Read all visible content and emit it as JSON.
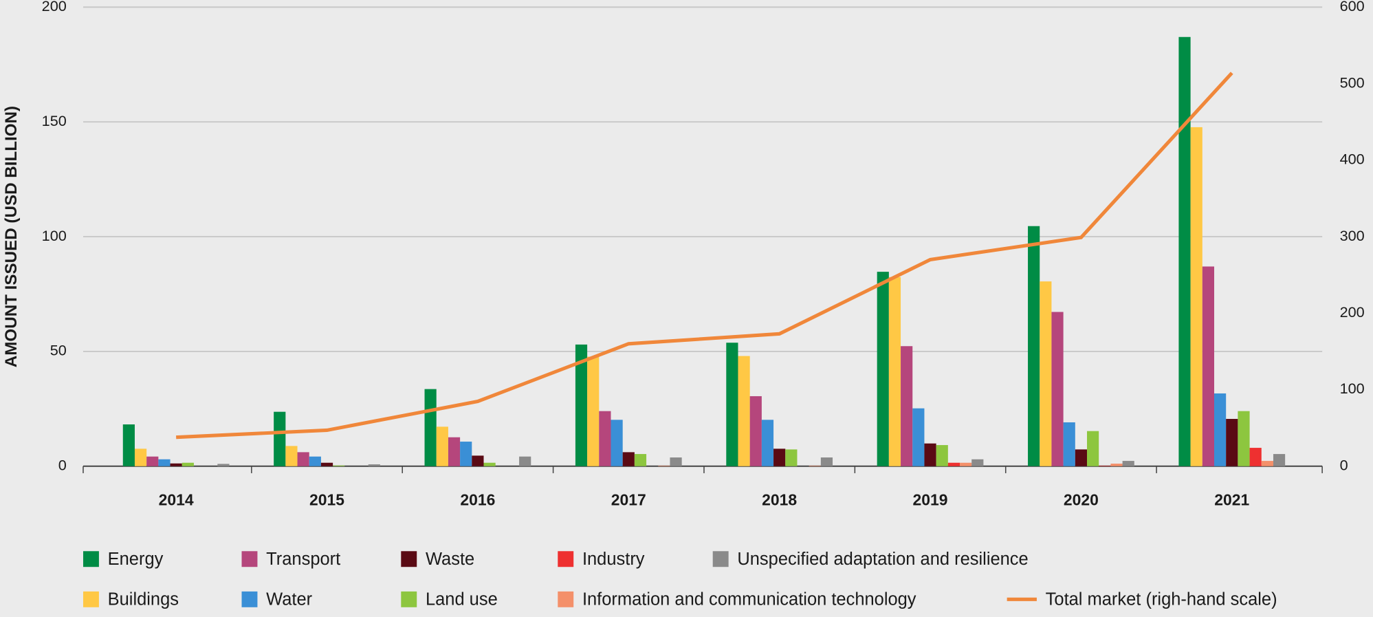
{
  "chart_data": {
    "type": "bar",
    "y_label": "AMOUNT ISSUED (USD BILLION)",
    "categories": [
      "2014",
      "2015",
      "2016",
      "2017",
      "2018",
      "2019",
      "2020",
      "2021"
    ],
    "ylim": [
      0,
      200
    ],
    "yticks": [
      0,
      50,
      100,
      150,
      200
    ],
    "y2lim": [
      0,
      600
    ],
    "y2ticks": [
      0,
      100,
      200,
      300,
      400,
      500,
      600
    ],
    "grid": true,
    "series": [
      {
        "name": "Energy",
        "color": "#008c45",
        "values": [
          18.2,
          23.7,
          33.6,
          53,
          53.8,
          84.7,
          104.6,
          187
        ]
      },
      {
        "name": "Buildings",
        "color": "#ffc845",
        "values": [
          7.6,
          8.8,
          17.2,
          47.7,
          48,
          82.4,
          80.5,
          147.7
        ]
      },
      {
        "name": "Transport",
        "color": "#b5467c",
        "values": [
          4.2,
          6.1,
          12.6,
          24,
          30.5,
          52.3,
          67.2,
          87
        ]
      },
      {
        "name": "Water",
        "color": "#3a8fd6",
        "values": [
          3,
          4.2,
          10.7,
          20.2,
          20.2,
          25.2,
          19.1,
          31.7
        ]
      },
      {
        "name": "Waste",
        "color": "#5a0a14",
        "values": [
          1.2,
          1.5,
          4.6,
          6.1,
          7.6,
          9.9,
          7.3,
          20.6
        ]
      },
      {
        "name": "Land use",
        "color": "#8dc63f",
        "values": [
          1.5,
          0.3,
          1.5,
          5.3,
          7.3,
          9.2,
          15.3,
          24
        ]
      },
      {
        "name": "Industry",
        "color": "#ee3030",
        "values": [
          0,
          0,
          0,
          0,
          0,
          1.5,
          0.2,
          8
        ]
      },
      {
        "name": "Information and communication technology",
        "color": "#f4906a",
        "values": [
          0,
          0,
          0,
          0.2,
          0.2,
          1.5,
          1.1,
          2.3
        ]
      },
      {
        "name": "Unspecified adaptation and resilience",
        "color": "#8a8a8a",
        "values": [
          1,
          0.8,
          4.2,
          3.8,
          3.8,
          3,
          2.3,
          5.3
        ]
      },
      {
        "name": "Total market (righ-hand scale)",
        "color": "#f0873a",
        "type": "line",
        "axis": "y2",
        "values": [
          37.8,
          47,
          84.7,
          160,
          173,
          270,
          299,
          514
        ]
      }
    ]
  }
}
